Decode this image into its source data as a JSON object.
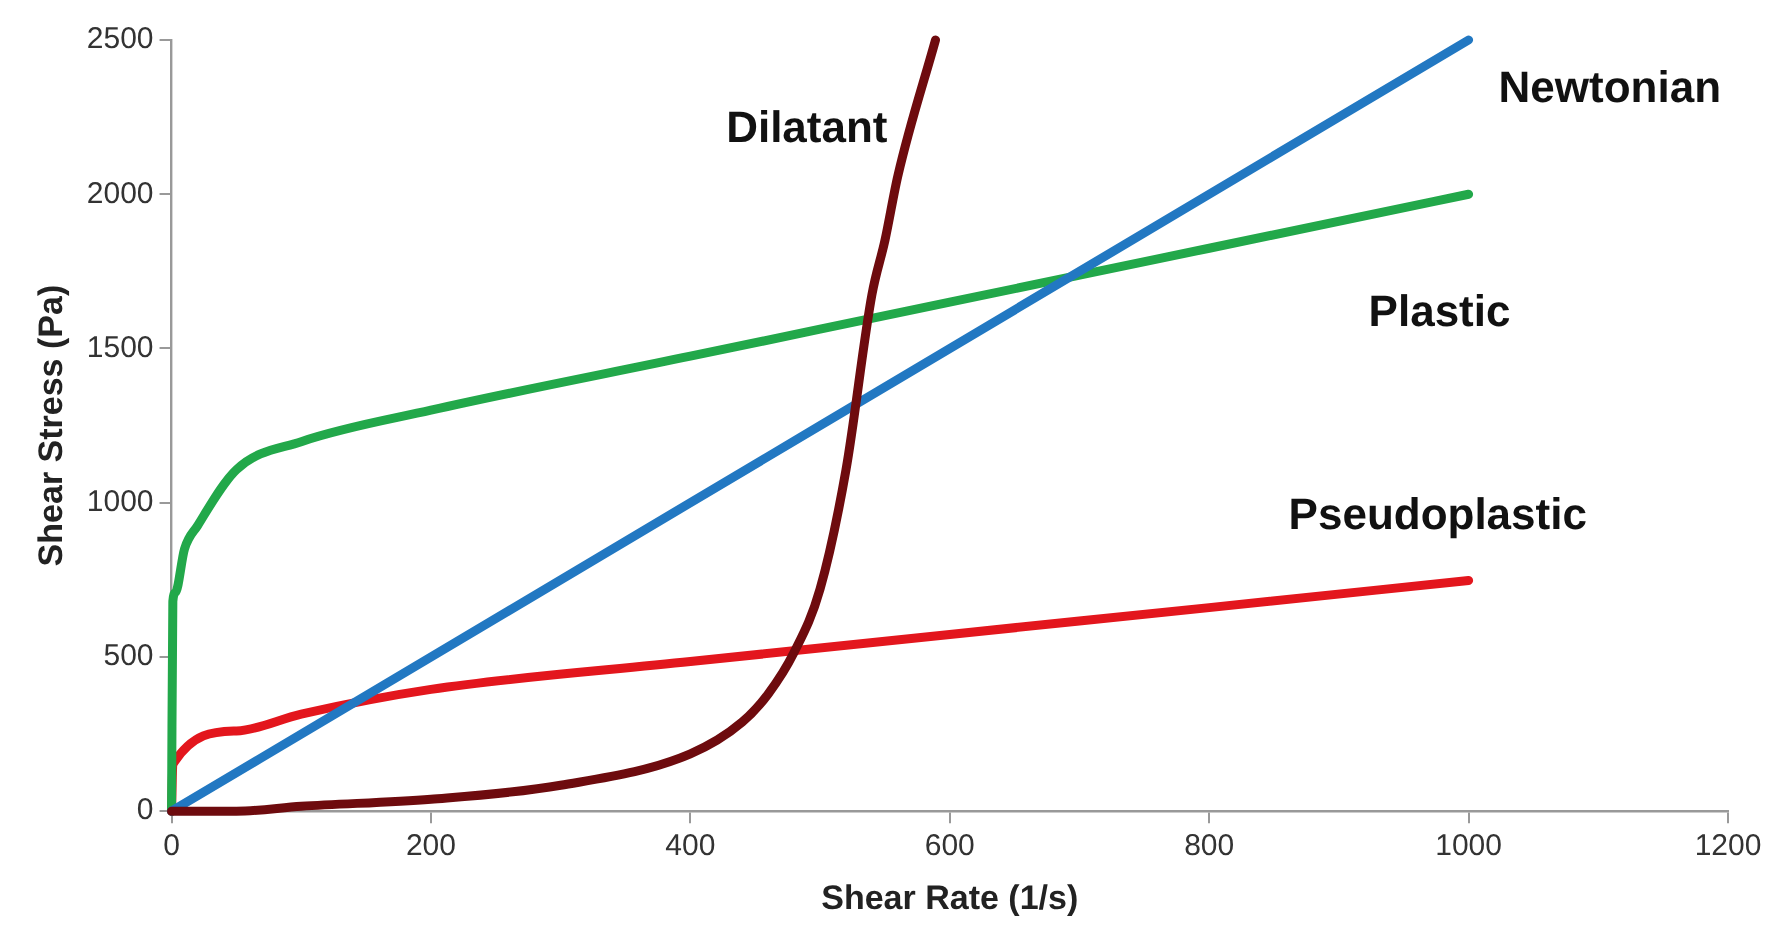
{
  "chart_data": {
    "type": "line",
    "xlabel": "Shear Rate (1/s)",
    "ylabel": "Shear Stress (Pa)",
    "xlim": [
      0,
      1200
    ],
    "xticks": [
      0,
      200,
      400,
      600,
      800,
      1000,
      1200
    ],
    "ylim": [
      0,
      2500
    ],
    "yticks": [
      0,
      500,
      1000,
      1500,
      2000,
      2500
    ],
    "grid": false,
    "legend": false,
    "marker": "none",
    "line_style": "solid",
    "series": [
      {
        "name": "Dilatant",
        "color": "#6e0b0e",
        "x": [
          0,
          50,
          100,
          200,
          300,
          400,
          440,
          460,
          480,
          500,
          520,
          540,
          550,
          560,
          589
        ],
        "values": [
          0,
          0,
          16,
          39,
          84,
          186,
          289,
          380,
          515,
          720,
          1107,
          1675,
          1850,
          2060,
          2500
        ]
      },
      {
        "name": "Newtonian",
        "color": "#2278c2",
        "x": [
          0,
          1000
        ],
        "values": [
          0,
          2500
        ]
      },
      {
        "name": "Plastic",
        "color": "#22a84a",
        "x": [
          0,
          1,
          3,
          10,
          20,
          50,
          100,
          200,
          400,
          600,
          800,
          1000
        ],
        "values": [
          0,
          680,
          709,
          850,
          925,
          1107,
          1198,
          1300,
          1475,
          1650,
          1825,
          2000
        ]
      },
      {
        "name": "Pseudoplastic",
        "color": "#e3161d",
        "x": [
          0,
          1,
          50,
          100,
          200,
          400,
          600,
          800,
          1000
        ],
        "values": [
          0,
          152,
          260,
          315,
          395,
          485,
          573,
          660,
          748
        ]
      }
    ]
  }
}
